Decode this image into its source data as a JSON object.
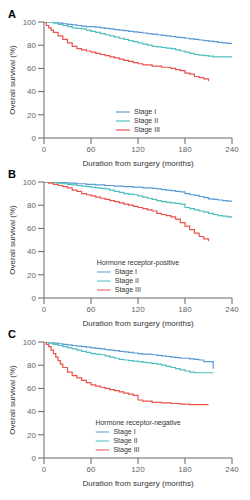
{
  "chart_data": [
    {
      "type": "step",
      "title": "A",
      "xlabel": "Duration from surgery (months)",
      "ylabel": "Overall survival (%)",
      "xlim": [
        0,
        240
      ],
      "ylim": [
        0,
        100
      ],
      "xticks": [
        0,
        60,
        120,
        180,
        240
      ],
      "yticks": [
        0,
        20,
        40,
        60,
        80,
        100
      ],
      "grid": false,
      "legend": "lower center",
      "series": [
        {
          "name": "Stage I",
          "color": "#5b9bd5",
          "x": [
            0,
            12,
            18,
            24,
            30,
            36,
            42,
            48,
            54,
            60,
            66,
            72,
            78,
            84,
            90,
            96,
            102,
            108,
            114,
            120,
            126,
            132,
            138,
            144,
            150,
            156,
            162,
            168,
            174,
            180,
            186,
            192,
            198,
            204,
            210,
            216,
            222,
            228,
            234,
            240
          ],
          "values": [
            100,
            100,
            99,
            98.5,
            98,
            97.5,
            97,
            96.5,
            96,
            96,
            95.5,
            95,
            94.5,
            94,
            93.5,
            93,
            92.5,
            92,
            91.5,
            91,
            90.5,
            90,
            89.5,
            89,
            88.5,
            88,
            87.5,
            87,
            86.5,
            86,
            85.5,
            85,
            84.5,
            84,
            83.5,
            83,
            82.5,
            82,
            81.5,
            81
          ]
        },
        {
          "name": "Stage II",
          "color": "#4dbfbf",
          "x": [
            0,
            6,
            12,
            18,
            24,
            30,
            36,
            42,
            48,
            54,
            60,
            66,
            72,
            78,
            84,
            90,
            96,
            102,
            108,
            114,
            120,
            126,
            132,
            138,
            144,
            150,
            156,
            162,
            168,
            174,
            180,
            186,
            192,
            198,
            204,
            210,
            216,
            222,
            228,
            234,
            240
          ],
          "values": [
            100,
            100,
            99,
            98,
            97,
            96,
            95,
            94.5,
            94,
            93,
            92,
            91,
            90,
            89,
            88,
            87,
            86,
            85,
            84,
            83,
            82,
            81,
            80,
            79,
            78.5,
            78,
            77.5,
            77,
            76,
            75,
            74,
            73,
            72,
            71.5,
            71,
            70.5,
            70,
            70,
            70,
            70,
            70
          ]
        },
        {
          "name": "Stage III",
          "color": "#e8534a",
          "x": [
            0,
            3,
            6,
            9,
            12,
            18,
            24,
            30,
            36,
            42,
            48,
            54,
            60,
            66,
            72,
            78,
            84,
            90,
            96,
            102,
            108,
            114,
            120,
            126,
            132,
            138,
            144,
            150,
            156,
            162,
            168,
            174,
            180,
            186,
            192,
            198,
            204,
            210
          ],
          "values": [
            100,
            97,
            95,
            93,
            91,
            88,
            85,
            82,
            79,
            77,
            76,
            75,
            74,
            73,
            72,
            71,
            70,
            69,
            68,
            67,
            66,
            65,
            64,
            63,
            63,
            62,
            62,
            61,
            61,
            60,
            59,
            58,
            56,
            55,
            53,
            52,
            51,
            49
          ]
        }
      ]
    },
    {
      "type": "step",
      "title": "B",
      "subtitle": "Hormone receptor-positive",
      "xlabel": "Duration from surgery (months)",
      "ylabel": "Overall survival (%)",
      "xlim": [
        0,
        240
      ],
      "ylim": [
        0,
        100
      ],
      "xticks": [
        0,
        60,
        120,
        180,
        240
      ],
      "yticks": [
        0,
        20,
        40,
        60,
        80,
        100
      ],
      "grid": false,
      "legend": "lower center",
      "series": [
        {
          "name": "Stage I",
          "color": "#5b9bd5",
          "x": [
            0,
            6,
            12,
            18,
            24,
            30,
            36,
            42,
            48,
            54,
            60,
            66,
            72,
            78,
            84,
            90,
            96,
            102,
            108,
            114,
            120,
            126,
            132,
            138,
            144,
            150,
            156,
            162,
            168,
            174,
            180,
            186,
            192,
            198,
            204,
            210,
            216,
            222,
            228,
            234,
            240
          ],
          "values": [
            100,
            100,
            100,
            99.5,
            99.5,
            99,
            99,
            98.5,
            98.5,
            98,
            98,
            97.5,
            97.5,
            97,
            97,
            96.5,
            96.5,
            96,
            96,
            95.5,
            95.5,
            95,
            95,
            94.5,
            94,
            93.5,
            93,
            92.5,
            92,
            91.5,
            90,
            89,
            88.5,
            87.5,
            86.5,
            85.5,
            85,
            84.5,
            84,
            83.5,
            83
          ]
        },
        {
          "name": "Stage II",
          "color": "#4dbfbf",
          "x": [
            0,
            6,
            12,
            18,
            24,
            30,
            36,
            42,
            48,
            54,
            60,
            66,
            72,
            78,
            84,
            90,
            96,
            102,
            108,
            114,
            120,
            126,
            132,
            138,
            144,
            150,
            156,
            162,
            168,
            174,
            180,
            186,
            192,
            198,
            204,
            210,
            216,
            222,
            228,
            234,
            240
          ],
          "values": [
            100,
            100,
            99.5,
            99,
            98.5,
            98,
            97.5,
            97,
            96.5,
            96,
            95.5,
            95,
            94.5,
            94,
            93,
            92,
            91,
            90,
            89.5,
            89,
            88,
            87,
            86,
            85,
            84,
            83,
            82.5,
            82,
            81.5,
            81,
            78,
            77,
            76,
            75,
            74,
            73,
            72,
            71,
            70.5,
            70,
            69
          ]
        },
        {
          "name": "Stage III",
          "color": "#e8534a",
          "x": [
            0,
            6,
            12,
            18,
            24,
            30,
            36,
            42,
            48,
            54,
            60,
            66,
            72,
            78,
            84,
            90,
            96,
            102,
            108,
            114,
            120,
            126,
            132,
            138,
            144,
            150,
            156,
            162,
            168,
            174,
            180,
            186,
            192,
            198,
            204,
            210
          ],
          "values": [
            100,
            99,
            98,
            97,
            96,
            95,
            93,
            92,
            90,
            89,
            88,
            87,
            86,
            85,
            84,
            83,
            82,
            81,
            80,
            79,
            78,
            77,
            76,
            75,
            73,
            72,
            71,
            70,
            68,
            65,
            62,
            59,
            56,
            53,
            51,
            49
          ]
        }
      ]
    },
    {
      "type": "step",
      "title": "C",
      "subtitle": "Hormone receptor-negative",
      "xlabel": "Duration from surgery (months)",
      "ylabel": "Overall survival (%)",
      "xlim": [
        0,
        240
      ],
      "ylim": [
        0,
        100
      ],
      "xticks": [
        0,
        60,
        120,
        180,
        240
      ],
      "yticks": [
        0,
        20,
        40,
        60,
        80,
        100
      ],
      "grid": false,
      "legend": "lower center",
      "series": [
        {
          "name": "Stage I",
          "color": "#5b9bd5",
          "x": [
            0,
            6,
            12,
            18,
            24,
            30,
            36,
            42,
            48,
            54,
            60,
            66,
            72,
            78,
            84,
            90,
            96,
            102,
            108,
            114,
            120,
            126,
            132,
            138,
            144,
            150,
            156,
            162,
            168,
            174,
            180,
            186,
            192,
            198,
            204,
            210,
            216
          ],
          "values": [
            100,
            100,
            99,
            98.5,
            98,
            97.5,
            97,
            96.5,
            96,
            95.5,
            95,
            94.5,
            94,
            93.5,
            93,
            92.5,
            92,
            91.5,
            91,
            90.5,
            90,
            89.5,
            89.5,
            89,
            88.5,
            88,
            87.5,
            87,
            86.5,
            86,
            86,
            85.5,
            85,
            84.5,
            83,
            83,
            77
          ]
        },
        {
          "name": "Stage II",
          "color": "#4dbfbf",
          "x": [
            0,
            6,
            12,
            18,
            24,
            30,
            36,
            42,
            48,
            54,
            60,
            66,
            72,
            78,
            84,
            90,
            96,
            102,
            108,
            114,
            120,
            126,
            132,
            138,
            144,
            150,
            156,
            162,
            168,
            174,
            180,
            186,
            192,
            198,
            204,
            210,
            216
          ],
          "values": [
            100,
            99,
            98,
            97,
            96,
            95,
            94,
            93,
            92,
            91,
            90,
            89.5,
            89,
            88,
            87,
            86,
            85,
            84.5,
            84,
            83.5,
            83,
            82.5,
            82,
            81.5,
            81,
            80,
            79,
            78,
            77,
            76,
            75,
            74,
            73.5,
            73.5,
            73.5,
            73.5,
            73.5
          ]
        },
        {
          "name": "Stage III",
          "color": "#e8534a",
          "x": [
            0,
            3,
            6,
            9,
            12,
            15,
            18,
            21,
            24,
            30,
            36,
            42,
            48,
            54,
            60,
            66,
            72,
            78,
            84,
            90,
            96,
            102,
            108,
            114,
            120,
            126,
            132,
            138,
            144,
            150,
            156,
            162,
            168,
            174,
            180,
            186,
            192,
            198,
            204,
            210
          ],
          "values": [
            100,
            98,
            96,
            93,
            90,
            87,
            84,
            81,
            78,
            74,
            71,
            69,
            67,
            65,
            63,
            62,
            61,
            60,
            59,
            58,
            57,
            56,
            55,
            54,
            50,
            49,
            49,
            48,
            48,
            47.5,
            47.5,
            47,
            47,
            46.5,
            46.5,
            46,
            46,
            46,
            46,
            46
          ]
        }
      ]
    }
  ]
}
